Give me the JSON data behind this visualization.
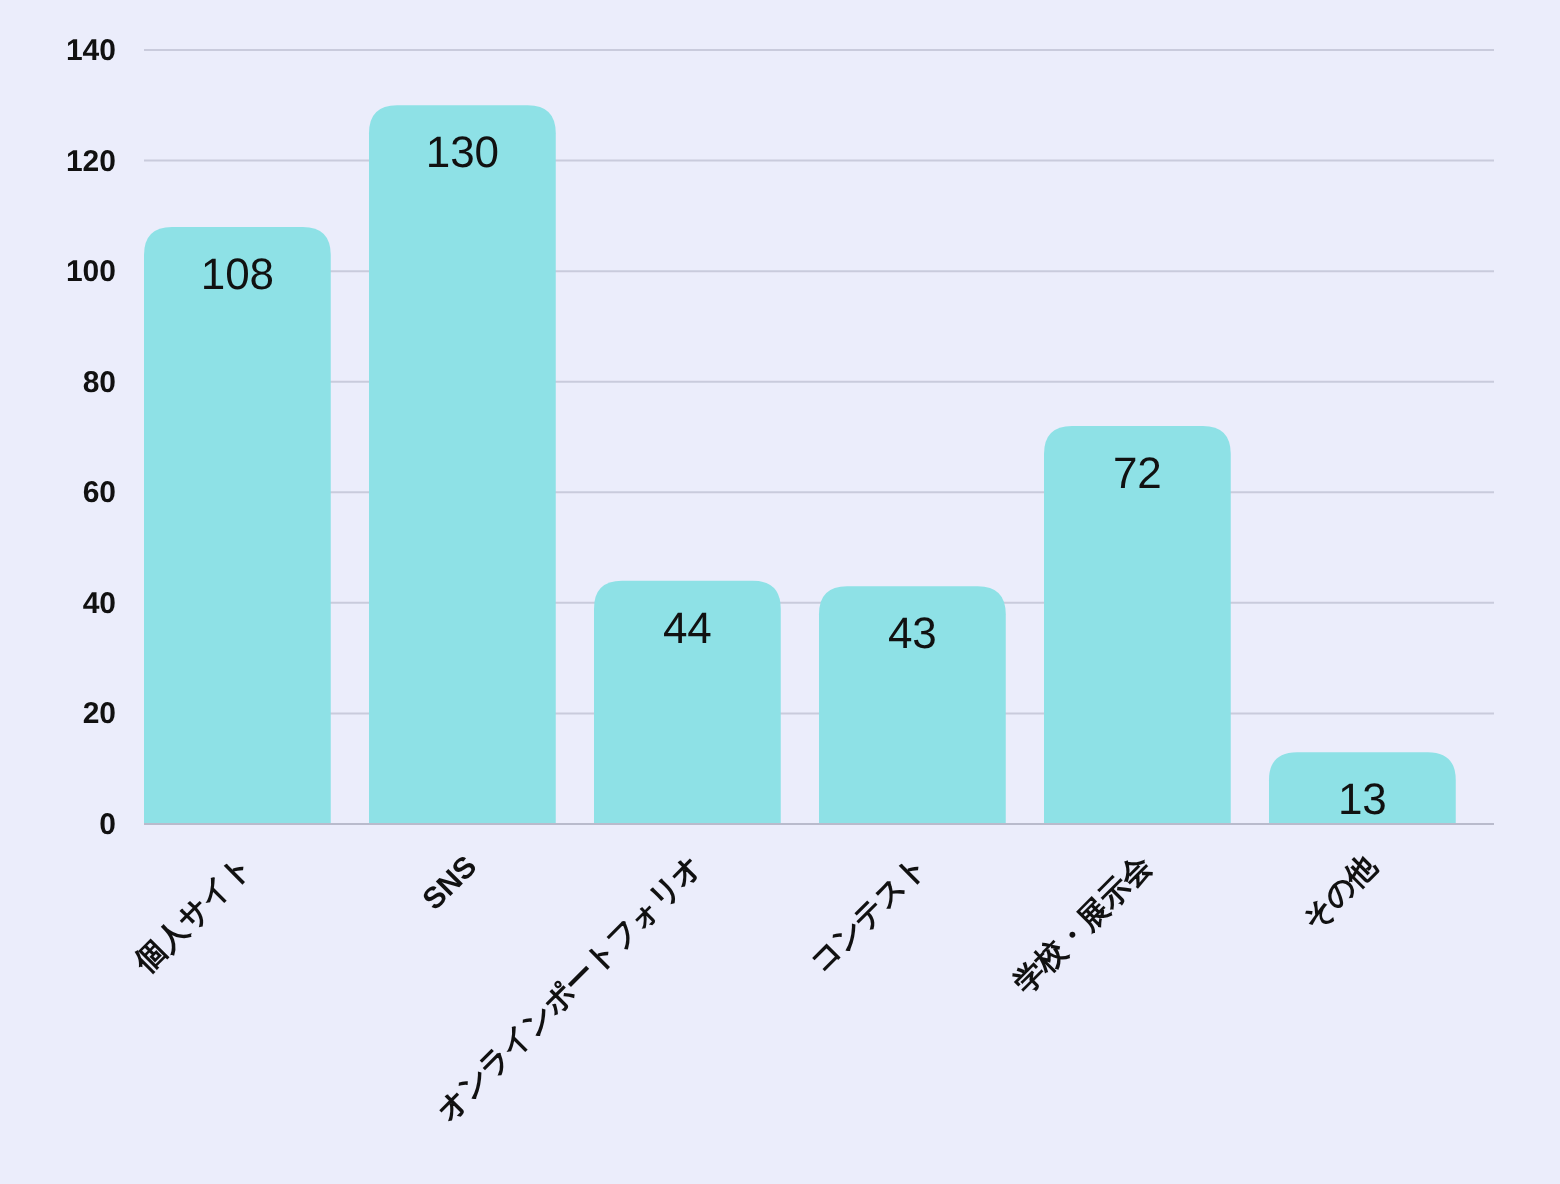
{
  "chart_data": {
    "type": "bar",
    "categories": [
      "個人サイト",
      "SNS",
      "オンラインポートフォリオ",
      "コンテスト",
      "学校・展示会",
      "その他"
    ],
    "values": [
      108,
      130,
      44,
      43,
      72,
      13
    ],
    "color": "#8ee1e6",
    "ylim": [
      0,
      140
    ],
    "yticks": [
      0,
      20,
      40,
      60,
      80,
      100,
      120,
      140
    ],
    "grid": "y",
    "data_labels": true
  }
}
